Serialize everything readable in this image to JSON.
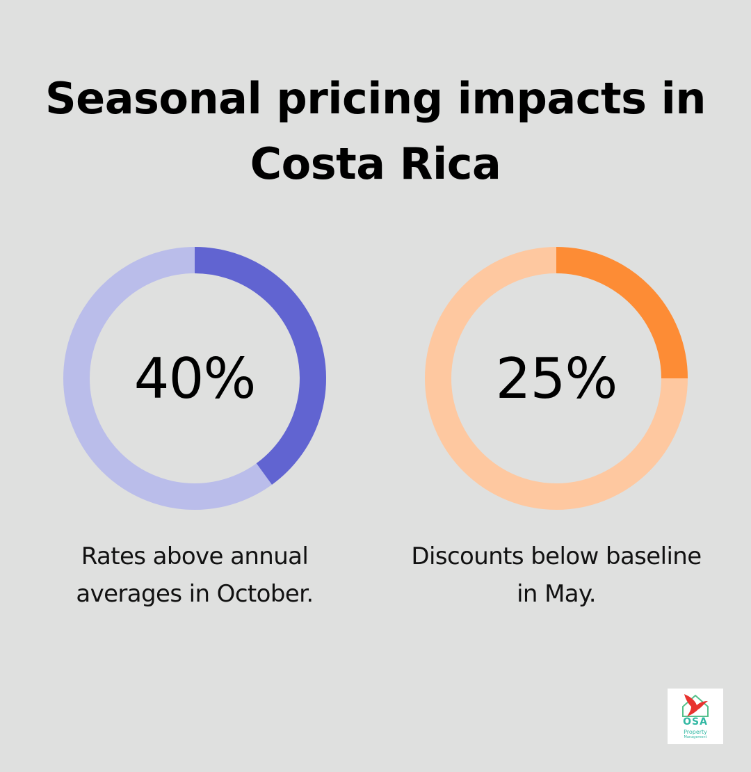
{
  "title": "Seasonal pricing impacts in Costa Rica",
  "chart_data": [
    {
      "type": "pie",
      "variant": "donut",
      "value": 40,
      "unit": "%",
      "label": "40%",
      "caption": "Rates above annual\naverages in October.",
      "colors": {
        "filled": "#6164d1",
        "track": "#babdea"
      }
    },
    {
      "type": "pie",
      "variant": "donut",
      "value": 25,
      "unit": "%",
      "label": "25%",
      "caption": "Discounts below baseline\nin May.",
      "colors": {
        "filled": "#fd8c35",
        "track": "#fec8a0"
      }
    }
  ],
  "logo": {
    "text": "OSA",
    "subtitle": "Property",
    "subtitle2": "Management",
    "colors": {
      "text": "#2fb7a2",
      "bird": "#e8332f",
      "house": "#55c08b"
    }
  }
}
